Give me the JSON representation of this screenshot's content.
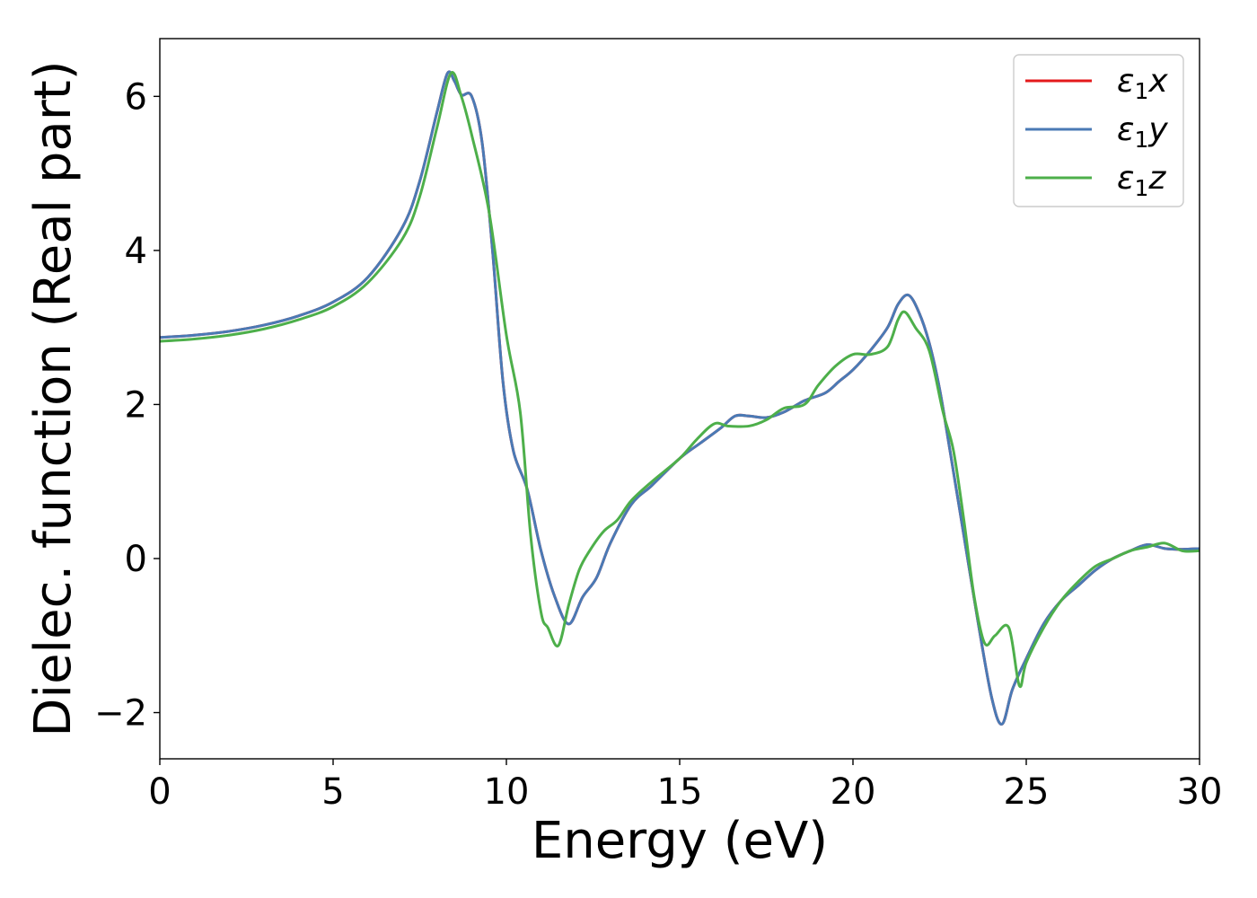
{
  "chart_data": {
    "type": "line",
    "title": "",
    "xlabel": "Energy (eV)",
    "ylabel": "Dielec. function (Real part)",
    "xlim": [
      0,
      30
    ],
    "ylim": [
      -2.6,
      6.75
    ],
    "xticks": [
      0,
      5,
      10,
      15,
      20,
      25,
      30
    ],
    "xtick_labels": [
      "0",
      "5",
      "10",
      "15",
      "20",
      "25",
      "30"
    ],
    "yticks": [
      -2,
      0,
      2,
      4,
      6
    ],
    "ytick_labels": [
      "−2",
      "0",
      "2",
      "4",
      "6"
    ],
    "grid": false,
    "legend_position": "top-right",
    "series": [
      {
        "name": "ε₁x",
        "legend_main": "ε",
        "legend_sub": "1",
        "legend_var": "x",
        "color": "#e41a1c",
        "x": [
          0,
          1,
          2,
          3,
          4,
          5,
          6,
          7,
          7.5,
          8,
          8.3,
          8.5,
          8.7,
          9.0,
          9.3,
          9.6,
          9.9,
          10.2,
          10.6,
          11.0,
          11.4,
          11.8,
          12.2,
          12.6,
          13.0,
          13.6,
          14.2,
          15.0,
          15.6,
          16.2,
          16.6,
          17.0,
          17.5,
          18.0,
          18.6,
          19.2,
          19.6,
          20.0,
          20.5,
          21.0,
          21.3,
          21.6,
          21.9,
          22.2,
          22.5,
          22.8,
          23.2,
          23.6,
          24.0,
          24.3,
          24.6,
          25.0,
          25.5,
          26.0,
          26.5,
          27.0,
          27.5,
          28.0,
          28.5,
          29.0,
          29.5,
          30.0
        ],
        "values": [
          2.87,
          2.9,
          2.95,
          3.03,
          3.15,
          3.33,
          3.65,
          4.3,
          4.9,
          5.8,
          6.3,
          6.2,
          6.02,
          6.0,
          5.4,
          4.0,
          2.3,
          1.4,
          0.9,
          0.1,
          -0.5,
          -0.85,
          -0.5,
          -0.25,
          0.2,
          0.7,
          0.95,
          1.3,
          1.5,
          1.7,
          1.85,
          1.85,
          1.83,
          1.9,
          2.05,
          2.15,
          2.3,
          2.45,
          2.7,
          3.0,
          3.3,
          3.42,
          3.2,
          2.8,
          2.2,
          1.4,
          0.3,
          -0.8,
          -1.8,
          -2.15,
          -1.7,
          -1.3,
          -0.85,
          -0.55,
          -0.35,
          -0.15,
          0.0,
          0.1,
          0.18,
          0.13,
          0.12,
          0.13
        ]
      },
      {
        "name": "ε₁y",
        "legend_main": "ε",
        "legend_sub": "1",
        "legend_var": "y",
        "color": "#4a7ab5",
        "x": [
          0,
          1,
          2,
          3,
          4,
          5,
          6,
          7,
          7.5,
          8,
          8.3,
          8.5,
          8.7,
          9.0,
          9.3,
          9.6,
          9.9,
          10.2,
          10.6,
          11.0,
          11.4,
          11.8,
          12.2,
          12.6,
          13.0,
          13.6,
          14.2,
          15.0,
          15.6,
          16.2,
          16.6,
          17.0,
          17.5,
          18.0,
          18.6,
          19.2,
          19.6,
          20.0,
          20.5,
          21.0,
          21.3,
          21.6,
          21.9,
          22.2,
          22.5,
          22.8,
          23.2,
          23.6,
          24.0,
          24.3,
          24.6,
          25.0,
          25.5,
          26.0,
          26.5,
          27.0,
          27.5,
          28.0,
          28.5,
          29.0,
          29.5,
          30.0
        ],
        "values": [
          2.87,
          2.9,
          2.95,
          3.03,
          3.15,
          3.33,
          3.65,
          4.3,
          4.9,
          5.8,
          6.3,
          6.2,
          6.02,
          6.0,
          5.4,
          4.0,
          2.3,
          1.4,
          0.9,
          0.1,
          -0.5,
          -0.85,
          -0.5,
          -0.25,
          0.2,
          0.7,
          0.95,
          1.3,
          1.5,
          1.7,
          1.85,
          1.85,
          1.83,
          1.9,
          2.05,
          2.15,
          2.3,
          2.45,
          2.7,
          3.0,
          3.3,
          3.42,
          3.2,
          2.8,
          2.2,
          1.4,
          0.3,
          -0.8,
          -1.8,
          -2.15,
          -1.7,
          -1.3,
          -0.85,
          -0.55,
          -0.35,
          -0.15,
          0.0,
          0.1,
          0.18,
          0.13,
          0.12,
          0.13
        ]
      },
      {
        "name": "ε₁z",
        "legend_main": "ε",
        "legend_sub": "1",
        "legend_var": "z",
        "color": "#4daf4a",
        "x": [
          0,
          1,
          2,
          3,
          4,
          5,
          6,
          7,
          7.5,
          8,
          8.4,
          8.7,
          9.0,
          9.5,
          10.0,
          10.4,
          10.7,
          11.0,
          11.2,
          11.5,
          11.8,
          12.1,
          12.4,
          12.8,
          13.2,
          13.6,
          14.2,
          15.0,
          15.5,
          16.0,
          16.4,
          17.0,
          17.5,
          18.0,
          18.6,
          19.0,
          19.5,
          20.0,
          20.5,
          21.0,
          21.3,
          21.5,
          21.8,
          22.2,
          22.6,
          22.9,
          23.2,
          23.5,
          23.8,
          24.1,
          24.5,
          24.8,
          25.0,
          25.5,
          26.0,
          26.5,
          27.0,
          27.5,
          28.0,
          28.5,
          29.0,
          29.5,
          30.0
        ],
        "values": [
          2.82,
          2.85,
          2.9,
          2.98,
          3.1,
          3.27,
          3.58,
          4.15,
          4.7,
          5.6,
          6.3,
          6.0,
          5.5,
          4.5,
          2.9,
          1.9,
          0.3,
          -0.7,
          -0.9,
          -1.13,
          -0.6,
          -0.15,
          0.1,
          0.35,
          0.5,
          0.75,
          1.0,
          1.3,
          1.55,
          1.75,
          1.72,
          1.72,
          1.8,
          1.95,
          2.0,
          2.25,
          2.5,
          2.65,
          2.65,
          2.75,
          3.1,
          3.2,
          3.0,
          2.7,
          1.9,
          1.4,
          0.5,
          -0.5,
          -1.1,
          -1.0,
          -0.9,
          -1.65,
          -1.35,
          -0.9,
          -0.55,
          -0.3,
          -0.1,
          0.0,
          0.1,
          0.15,
          0.2,
          0.1,
          0.1
        ]
      }
    ]
  }
}
